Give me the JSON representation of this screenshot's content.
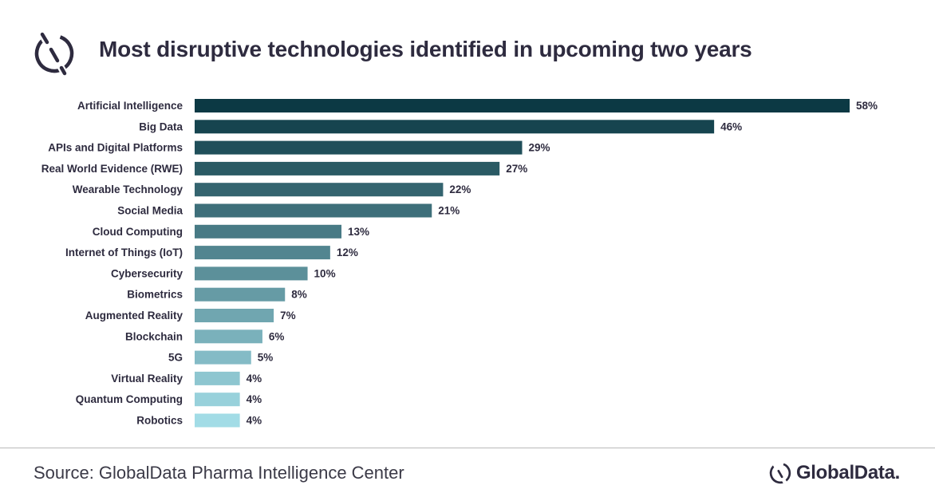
{
  "header": {
    "title": "Most disruptive technologies identified in upcoming two years",
    "logo_icon": "globaldata-mark-icon"
  },
  "footer": {
    "source": "Source: GlobalData Pharma Intelligence Center",
    "brand": "GlobalData."
  },
  "colors": {
    "bar_darkest": "#0c3944",
    "bar_lightest": "#a2dce6",
    "text": "#2e2b3f"
  },
  "chart_data": {
    "type": "bar",
    "orientation": "horizontal",
    "title": "Most disruptive technologies identified in upcoming two years",
    "xlabel": "",
    "ylabel": "",
    "grid": false,
    "legend": "none",
    "xlim": [
      0,
      58
    ],
    "categories": [
      "Artificial Intelligence",
      "Big Data",
      "APIs and Digital Platforms",
      "Real World Evidence (RWE)",
      "Wearable Technology",
      "Social Media",
      "Cloud Computing",
      "Internet of Things (IoT)",
      "Cybersecurity",
      "Biometrics",
      "Augmented Reality",
      "Blockchain",
      "5G",
      "Virtual Reality",
      "Quantum Computing",
      "Robotics"
    ],
    "values": [
      58,
      46,
      29,
      27,
      22,
      21,
      13,
      12,
      10,
      8,
      7,
      6,
      5,
      4,
      4,
      4
    ],
    "value_labels": [
      "58%",
      "46%",
      "29%",
      "27%",
      "22%",
      "21%",
      "13%",
      "12%",
      "10%",
      "8%",
      "7%",
      "6%",
      "5%",
      "4%",
      "4%",
      "4%"
    ]
  }
}
